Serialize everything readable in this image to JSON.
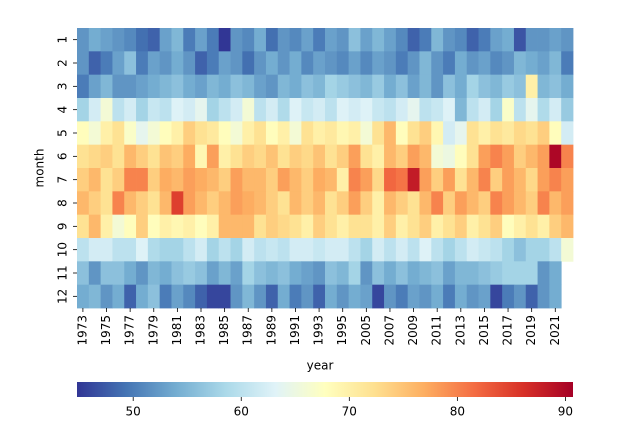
{
  "chart_data": {
    "type": "heatmap",
    "xlabel": "year",
    "ylabel": "month",
    "x": [
      1973,
      null,
      1975,
      null,
      1977,
      null,
      1979,
      null,
      1981,
      null,
      1983,
      null,
      1985,
      null,
      1987,
      null,
      1989,
      null,
      1991,
      null,
      1993,
      null,
      1995,
      null,
      2005,
      null,
      2007,
      null,
      2009,
      null,
      2011,
      null,
      2013,
      null,
      2015,
      null,
      2017,
      null,
      2019,
      null,
      2021,
      null
    ],
    "y": [
      1,
      2,
      3,
      4,
      5,
      6,
      7,
      8,
      9,
      10,
      11,
      12
    ],
    "values": [
      [
        52,
        54,
        53,
        52,
        51,
        49,
        48,
        53,
        55,
        50,
        53,
        50,
        44,
        52,
        51,
        54,
        49,
        52,
        51,
        53,
        50,
        53,
        52,
        56,
        53,
        55,
        53,
        51,
        48,
        50,
        55,
        52,
        51,
        48,
        50,
        53,
        54,
        47,
        52,
        52,
        53,
        52
      ],
      [
        52,
        48,
        50,
        53,
        56,
        50,
        53,
        52,
        54,
        52,
        48,
        50,
        53,
        52,
        49,
        52,
        54,
        52,
        54,
        51,
        53,
        52,
        51,
        53,
        51,
        53,
        52,
        50,
        52,
        55,
        52,
        50,
        54,
        52,
        53,
        51,
        52,
        55,
        54,
        53,
        55,
        50
      ],
      [
        50,
        53,
        55,
        52,
        52,
        53,
        54,
        55,
        56,
        54,
        53,
        55,
        54,
        56,
        55,
        53,
        52,
        55,
        54,
        56,
        55,
        58,
        57,
        56,
        55,
        57,
        54,
        56,
        53,
        55,
        52,
        56,
        54,
        58,
        56,
        55,
        57,
        56,
        70,
        55,
        56,
        54
      ],
      [
        58,
        62,
        66,
        60,
        62,
        58,
        61,
        60,
        63,
        62,
        64,
        58,
        60,
        62,
        66,
        60,
        62,
        59,
        63,
        61,
        62,
        60,
        63,
        62,
        63,
        61,
        60,
        62,
        64,
        60,
        61,
        63,
        55,
        60,
        62,
        58,
        67,
        60,
        64,
        59,
        62,
        57
      ],
      [
        68,
        66,
        70,
        72,
        67,
        64,
        66,
        68,
        70,
        74,
        72,
        71,
        68,
        66,
        70,
        72,
        68,
        70,
        66,
        72,
        70,
        71,
        69,
        70,
        66,
        72,
        76,
        68,
        72,
        74,
        69,
        62,
        64,
        72,
        70,
        72,
        71,
        73,
        72,
        74,
        68,
        62
      ],
      [
        72,
        73,
        74,
        72,
        76,
        74,
        72,
        75,
        74,
        77,
        69,
        78,
        70,
        72,
        74,
        73,
        75,
        72,
        74,
        73,
        75,
        72,
        74,
        78,
        72,
        70,
        76,
        74,
        78,
        76,
        66,
        65,
        68,
        72,
        78,
        80,
        78,
        74,
        76,
        78,
        90,
        80
      ],
      [
        74,
        76,
        72,
        74,
        80,
        80,
        74,
        77,
        76,
        78,
        77,
        76,
        74,
        78,
        76,
        76,
        74,
        78,
        76,
        74,
        77,
        76,
        70,
        80,
        78,
        73,
        82,
        81,
        88,
        78,
        74,
        78,
        72,
        76,
        80,
        74,
        78,
        76,
        73,
        78,
        80,
        78
      ],
      [
        76,
        74,
        72,
        80,
        76,
        74,
        72,
        76,
        85,
        78,
        76,
        74,
        76,
        78,
        77,
        76,
        74,
        72,
        76,
        74,
        76,
        72,
        74,
        78,
        74,
        70,
        76,
        74,
        72,
        76,
        80,
        74,
        78,
        76,
        74,
        80,
        78,
        76,
        74,
        80,
        76,
        78
      ],
      [
        72,
        76,
        70,
        66,
        68,
        74,
        68,
        70,
        69,
        70,
        68,
        70,
        76,
        76,
        76,
        72,
        74,
        73,
        72,
        70,
        74,
        72,
        70,
        72,
        72,
        70,
        74,
        70,
        72,
        74,
        70,
        72,
        74,
        70,
        72,
        74,
        68,
        70,
        72,
        70,
        74,
        76
      ],
      [
        60,
        62,
        62,
        60,
        60,
        63,
        59,
        58,
        58,
        60,
        62,
        58,
        60,
        58,
        62,
        60,
        61,
        60,
        62,
        62,
        61,
        62,
        62,
        60,
        58,
        62,
        60,
        62,
        60,
        63,
        60,
        58,
        60,
        62,
        61,
        60,
        58,
        56,
        58,
        58,
        60,
        66
      ],
      [
        56,
        52,
        56,
        56,
        54,
        52,
        55,
        54,
        56,
        57,
        56,
        53,
        55,
        53,
        58,
        56,
        55,
        56,
        54,
        53,
        52,
        56,
        55,
        58,
        52,
        56,
        54,
        56,
        54,
        55,
        56,
        53,
        55,
        55,
        56,
        57,
        58,
        58,
        58,
        52,
        54,
        null
      ],
      [
        54,
        55,
        52,
        54,
        48,
        54,
        56,
        50,
        53,
        51,
        48,
        46,
        46,
        52,
        55,
        52,
        48,
        54,
        50,
        52,
        48,
        54,
        52,
        54,
        53,
        46,
        52,
        50,
        53,
        52,
        54,
        50,
        54,
        52,
        53,
        46,
        50,
        52,
        48,
        52,
        54,
        null
      ]
    ],
    "colormap": "RdYlBu_r",
    "clim": [
      44.8,
      90.7
    ],
    "cticks": [
      50,
      60,
      70,
      80,
      90
    ]
  }
}
